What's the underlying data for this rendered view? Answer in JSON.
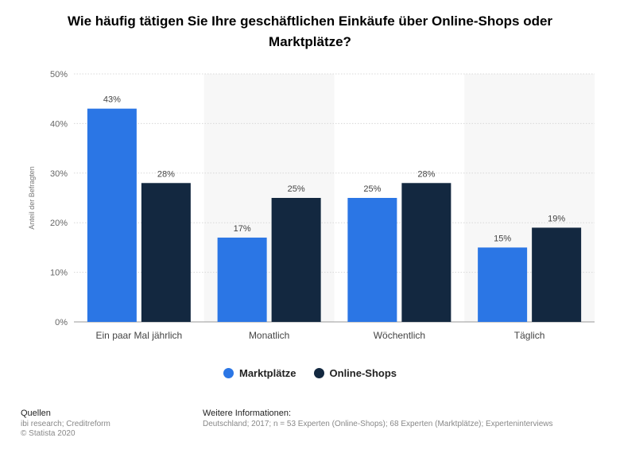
{
  "title": "Wie häufig tätigen Sie Ihre geschäftlichen Einkäufe über Online-Shops oder Marktplätze?",
  "chart_data": {
    "type": "bar",
    "categories": [
      "Ein paar Mal jährlich",
      "Monatlich",
      "Wöchentlich",
      "Täglich"
    ],
    "series": [
      {
        "name": "Marktplätze",
        "values": [
          43,
          17,
          25,
          15
        ],
        "color": "#2b76e5"
      },
      {
        "name": "Online-Shops",
        "values": [
          28,
          25,
          28,
          19
        ],
        "color": "#132840"
      }
    ],
    "value_labels": [
      [
        "43%",
        "17%",
        "25%",
        "15%"
      ],
      [
        "28%",
        "25%",
        "28%",
        "19%"
      ]
    ],
    "yticks": [
      "0%",
      "10%",
      "20%",
      "30%",
      "40%",
      "50%"
    ],
    "ylim": [
      0,
      50
    ],
    "ylabel": "Anteil der Befragten",
    "xlabel": "",
    "grid": true,
    "legend_position": "bottom-center"
  },
  "legend": {
    "items": [
      {
        "label": "Marktplätze",
        "color": "#2b76e5"
      },
      {
        "label": "Online-Shops",
        "color": "#132840"
      }
    ]
  },
  "footer": {
    "sources_heading": "Quellen",
    "sources_line1": "ibi research; Creditreform",
    "sources_line2": "© Statista 2020",
    "info_heading": "Weitere Informationen:",
    "info_text": "Deutschland; 2017; n = 53 Experten (Online-Shops); 68 Experten (Marktplätze); Experteninterviews"
  }
}
